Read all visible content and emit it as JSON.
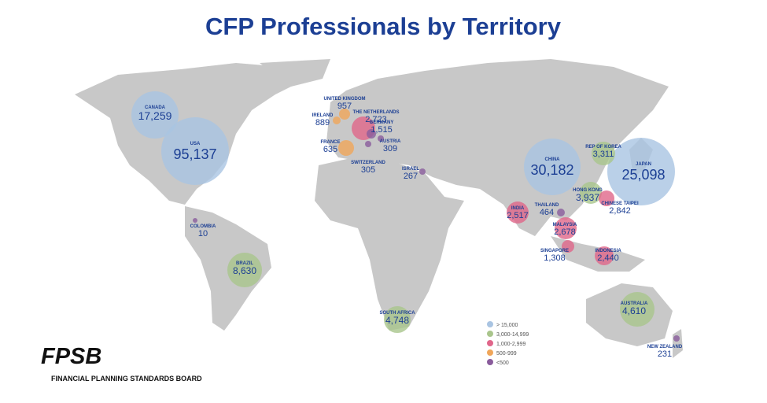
{
  "title": "CFP Professionals by Territory",
  "territories": [
    {
      "name": "CANADA",
      "value": "17,259"
    },
    {
      "name": "USA",
      "value": "95,137"
    },
    {
      "name": "UNITED KINGDOM",
      "value": "957"
    },
    {
      "name": "IRELAND",
      "value": "889"
    },
    {
      "name": "THE NETHERLANDS",
      "value": "2,723"
    },
    {
      "name": "GERMANY",
      "value": "1,515"
    },
    {
      "name": "FRANCE",
      "value": "635"
    },
    {
      "name": "AUSTRIA",
      "value": "309"
    },
    {
      "name": "SWITZERLAND",
      "value": "305"
    },
    {
      "name": "ISRAEL",
      "value": "267"
    },
    {
      "name": "COLOMBIA",
      "value": "10"
    },
    {
      "name": "BRAZIL",
      "value": "8,630"
    },
    {
      "name": "SOUTH AFRICA",
      "value": "4,748"
    },
    {
      "name": "CHINA",
      "value": "30,182"
    },
    {
      "name": "JAPAN",
      "value": "25,098"
    },
    {
      "name": "REP OF KOREA",
      "value": "3,311"
    },
    {
      "name": "HONG KONG",
      "value": "3,937"
    },
    {
      "name": "CHINESE TAIPEI",
      "value": "2,842"
    },
    {
      "name": "THAILAND",
      "value": "464"
    },
    {
      "name": "INDIA",
      "value": "2,517"
    },
    {
      "name": "MALAYSIA",
      "value": "2,678"
    },
    {
      "name": "SINGAPORE",
      "value": "1,308"
    },
    {
      "name": "INDONESIA",
      "value": "2,440"
    },
    {
      "name": "AUSTRALIA",
      "value": "4,610"
    },
    {
      "name": "NEW ZEALAND",
      "value": "231"
    }
  ],
  "legend": [
    {
      "label": "> 15,000",
      "color": "#a9c4e2"
    },
    {
      "label": "3,000-14,999",
      "color": "#a9c58c"
    },
    {
      "label": "1,000-2,999",
      "color": "#e0668a"
    },
    {
      "label": "500-999",
      "color": "#f0a65a"
    },
    {
      "label": "<500",
      "color": "#8a5c9c"
    }
  ],
  "logo": {
    "mark": "FPSB",
    "name": "FINANCIAL PLANNING STANDARDS BOARD"
  }
}
